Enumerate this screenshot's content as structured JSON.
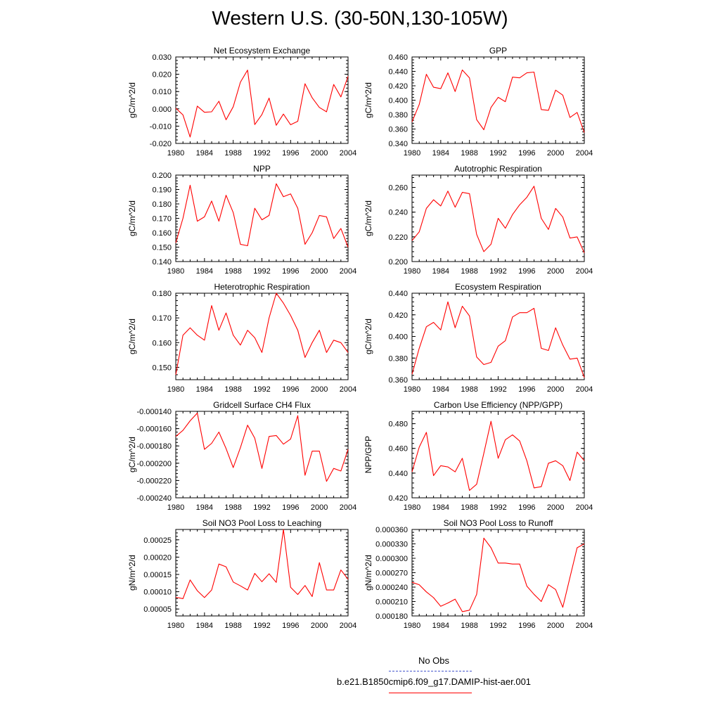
{
  "title": "Western U.S. (30-50N,130-105W)",
  "legend": {
    "obs_label": "No Obs",
    "obs_color": "#4455cc",
    "model_label": "b.e21.B1850cmip6.f09_g17.DAMIP-hist-aer.001",
    "model_color": "#ff0000"
  },
  "chart_data": [
    {
      "type": "line",
      "title": "Net Ecosystem Exchange",
      "ylabel": "gC/m^2/d",
      "xlim": [
        1980,
        2004
      ],
      "xticks": [
        1980,
        1984,
        1988,
        1992,
        1996,
        2000,
        2004
      ],
      "ylim": [
        -0.02,
        0.03
      ],
      "yticks": [
        "-0.020",
        "-0.010",
        "0.000",
        "0.010",
        "0.020",
        "0.030"
      ],
      "series": [
        {
          "values": [
            0.0004,
            -0.0035,
            -0.0163,
            0.0016,
            -0.002,
            -0.0017,
            0.0044,
            -0.0063,
            0.0012,
            0.0154,
            0.0224,
            -0.0091,
            -0.0033,
            0.0062,
            -0.0095,
            -0.003,
            -0.0092,
            -0.0072,
            0.0145,
            0.0064,
            0.0008,
            -0.0017,
            0.0141,
            0.0069,
            0.0188
          ]
        }
      ]
    },
    {
      "type": "line",
      "title": "GPP",
      "ylabel": "gC/m^2/d",
      "xlim": [
        1980,
        2004
      ],
      "xticks": [
        1980,
        1984,
        1988,
        1992,
        1996,
        2000,
        2004
      ],
      "ylim": [
        0.34,
        0.46
      ],
      "yticks": [
        "0.340",
        "0.360",
        "0.380",
        "0.400",
        "0.420",
        "0.440",
        "0.460"
      ],
      "series": [
        {
          "values": [
            0.37,
            0.394,
            0.436,
            0.418,
            0.416,
            0.438,
            0.412,
            0.442,
            0.431,
            0.373,
            0.359,
            0.39,
            0.404,
            0.398,
            0.432,
            0.431,
            0.438,
            0.439,
            0.387,
            0.386,
            0.414,
            0.407,
            0.376,
            0.383,
            0.355
          ]
        }
      ]
    },
    {
      "type": "line",
      "title": "NPP",
      "ylabel": "gC/m^2/d",
      "xlim": [
        1980,
        2004
      ],
      "xticks": [
        1980,
        1984,
        1988,
        1992,
        1996,
        2000,
        2004
      ],
      "ylim": [
        0.14,
        0.2
      ],
      "yticks": [
        "0.140",
        "0.150",
        "0.160",
        "0.170",
        "0.180",
        "0.190",
        "0.200"
      ],
      "series": [
        {
          "values": [
            0.153,
            0.17,
            0.193,
            0.168,
            0.171,
            0.182,
            0.168,
            0.186,
            0.174,
            0.152,
            0.151,
            0.177,
            0.169,
            0.172,
            0.194,
            0.185,
            0.187,
            0.177,
            0.152,
            0.16,
            0.172,
            0.171,
            0.156,
            0.163,
            0.15
          ]
        }
      ]
    },
    {
      "type": "line",
      "title": "Autotrophic Respiration",
      "ylabel": "gC/m^2/d",
      "xlim": [
        1980,
        2004
      ],
      "xticks": [
        1980,
        1984,
        1988,
        1992,
        1996,
        2000,
        2004
      ],
      "ylim": [
        0.2,
        0.27
      ],
      "yticks": [
        "0.200",
        "0.220",
        "0.240",
        "0.260"
      ],
      "series": [
        {
          "values": [
            0.217,
            0.224,
            0.243,
            0.25,
            0.245,
            0.257,
            0.244,
            0.256,
            0.255,
            0.222,
            0.208,
            0.214,
            0.235,
            0.227,
            0.238,
            0.246,
            0.252,
            0.261,
            0.235,
            0.226,
            0.243,
            0.236,
            0.219,
            0.22,
            0.207
          ]
        }
      ]
    },
    {
      "type": "line",
      "title": "Heterotrophic Respiration",
      "ylabel": "gC/m^2/d",
      "xlim": [
        1980,
        2004
      ],
      "xticks": [
        1980,
        1984,
        1988,
        1992,
        1996,
        2000,
        2004
      ],
      "ylim": [
        0.145,
        0.18
      ],
      "yticks": [
        "0.150",
        "0.160",
        "0.170",
        "0.180"
      ],
      "series": [
        {
          "values": [
            0.147,
            0.163,
            0.166,
            0.163,
            0.161,
            0.175,
            0.165,
            0.172,
            0.163,
            0.159,
            0.165,
            0.162,
            0.156,
            0.17,
            0.18,
            0.176,
            0.171,
            0.165,
            0.154,
            0.16,
            0.165,
            0.156,
            0.161,
            0.16,
            0.156
          ]
        }
      ]
    },
    {
      "type": "line",
      "title": "Ecosystem Respiration",
      "ylabel": "gC/m^2/d",
      "xlim": [
        1980,
        2004
      ],
      "xticks": [
        1980,
        1984,
        1988,
        1992,
        1996,
        2000,
        2004
      ],
      "ylim": [
        0.36,
        0.44
      ],
      "yticks": [
        "0.360",
        "0.380",
        "0.400",
        "0.420",
        "0.440"
      ],
      "series": [
        {
          "values": [
            0.365,
            0.389,
            0.409,
            0.413,
            0.406,
            0.432,
            0.408,
            0.428,
            0.419,
            0.381,
            0.374,
            0.376,
            0.391,
            0.396,
            0.418,
            0.422,
            0.422,
            0.426,
            0.389,
            0.387,
            0.408,
            0.392,
            0.379,
            0.38,
            0.362
          ]
        }
      ]
    },
    {
      "type": "line",
      "title": "Gridcell Surface CH4 Flux",
      "ylabel": "gC/m^2/d",
      "xlim": [
        1980,
        2004
      ],
      "xticks": [
        1980,
        1984,
        1988,
        1992,
        1996,
        2000,
        2004
      ],
      "ylim": [
        -0.00024,
        -0.00014
      ],
      "yticks": [
        "-0.000240",
        "-0.000220",
        "-0.000200",
        "-0.000180",
        "-0.000160",
        "-0.000140"
      ],
      "series": [
        {
          "values": [
            -0.000169,
            -0.000162,
            -0.000151,
            -0.000142,
            -0.000184,
            -0.000177,
            -0.000164,
            -0.000183,
            -0.000205,
            -0.000182,
            -0.000156,
            -0.000171,
            -0.000206,
            -0.000169,
            -0.000168,
            -0.000178,
            -0.000172,
            -0.000145,
            -0.000214,
            -0.000186,
            -0.000186,
            -0.000221,
            -0.000206,
            -0.000209,
            -0.000184
          ]
        }
      ]
    },
    {
      "type": "line",
      "title": "Carbon Use Efficiency (NPP/GPP)",
      "ylabel": "NPP/GPP",
      "xlim": [
        1980,
        2004
      ],
      "xticks": [
        1980,
        1984,
        1988,
        1992,
        1996,
        2000,
        2004
      ],
      "ylim": [
        0.42,
        0.49
      ],
      "yticks": [
        "0.420",
        "0.440",
        "0.460",
        "0.480"
      ],
      "series": [
        {
          "values": [
            0.441,
            0.461,
            0.473,
            0.438,
            0.446,
            0.445,
            0.441,
            0.452,
            0.426,
            0.431,
            0.456,
            0.482,
            0.452,
            0.467,
            0.471,
            0.466,
            0.45,
            0.428,
            0.429,
            0.448,
            0.45,
            0.446,
            0.434,
            0.457,
            0.45
          ]
        }
      ]
    },
    {
      "type": "line",
      "title": "Soil NO3 Pool Loss to Leaching",
      "ylabel": "gN/m^2/d",
      "xlim": [
        1980,
        2004
      ],
      "xticks": [
        1980,
        1984,
        1988,
        1992,
        1996,
        2000,
        2004
      ],
      "ylim": [
        3e-05,
        0.00028
      ],
      "yticks": [
        "0.00005",
        "0.00010",
        "0.00015",
        "0.00020",
        "0.00025"
      ],
      "series": [
        {
          "values": [
            8.4e-05,
            8e-05,
            0.000134,
            0.000103,
            8.3e-05,
            0.000105,
            0.00018,
            0.000172,
            0.000128,
            0.000117,
            0.000105,
            0.000153,
            0.000129,
            0.000152,
            0.000127,
            0.00028,
            0.000113,
            9.2e-05,
            0.000118,
            8.6e-05,
            0.000184,
            0.000105,
            0.000105,
            0.000163,
            0.000136
          ]
        }
      ]
    },
    {
      "type": "line",
      "title": "Soil NO3 Pool Loss to Runoff",
      "ylabel": "gN/m^2/d",
      "xlim": [
        1980,
        2004
      ],
      "xticks": [
        1980,
        1984,
        1988,
        1992,
        1996,
        2000,
        2004
      ],
      "ylim": [
        0.00018,
        0.00036
      ],
      "yticks": [
        "0.000180",
        "0.000210",
        "0.000240",
        "0.000270",
        "0.000300",
        "0.000330",
        "0.000360"
      ],
      "series": [
        {
          "values": [
            0.00025,
            0.000245,
            0.00023,
            0.000218,
            0.0002,
            0.000207,
            0.000215,
            0.000189,
            0.000192,
            0.000225,
            0.000342,
            0.000322,
            0.00029,
            0.00029,
            0.000288,
            0.000288,
            0.000242,
            0.000225,
            0.00021,
            0.000245,
            0.000235,
            0.000198,
            0.00026,
            0.000322,
            0.00033
          ]
        }
      ]
    }
  ]
}
